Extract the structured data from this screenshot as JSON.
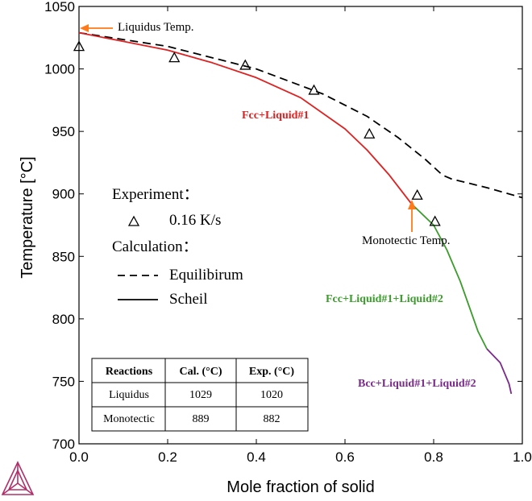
{
  "chart_data": {
    "type": "line",
    "xlabel": "Mole fraction of solid",
    "ylabel": "Temperature [°C]",
    "xlim": [
      0.0,
      1.0
    ],
    "ylim": [
      700,
      1050
    ],
    "x_ticks": [
      "0.0",
      "0.2",
      "0.4",
      "0.6",
      "0.8",
      "1.0"
    ],
    "y_ticks": [
      "700",
      "750",
      "800",
      "850",
      "900",
      "950",
      "1000",
      "1050"
    ],
    "grid": false,
    "series": [
      {
        "name": "Equilibirum",
        "style": "dashed",
        "color": "#000000",
        "x": [
          0.0,
          0.2,
          0.4,
          0.55,
          0.65,
          0.72,
          0.78,
          0.82,
          0.84,
          0.92,
          1.0
        ],
        "y": [
          1029,
          1018,
          1000,
          980,
          962,
          945,
          928,
          915,
          912,
          905,
          897
        ]
      },
      {
        "name": "Scheil",
        "style": "solid",
        "segments": [
          {
            "label": "Fcc+Liquid#1",
            "color": "#e02020",
            "x": [
              0.0,
              0.1,
              0.2,
              0.3,
              0.4,
              0.5,
              0.6,
              0.65,
              0.7,
              0.75
            ],
            "y": [
              1029,
              1022,
              1015,
              1005,
              993,
              977,
              952,
              935,
              915,
              892
            ]
          },
          {
            "label": "Fcc+Liquid#1+Liquid#2",
            "color": "#3a9c2a",
            "x": [
              0.75,
              0.8,
              0.83,
              0.86,
              0.88,
              0.9,
              0.92
            ],
            "y": [
              892,
              875,
              855,
              830,
              810,
              790,
              776
            ]
          },
          {
            "label": "Bcc+Liquid#1+Liquid#2",
            "color": "#7a2a8a",
            "x": [
              0.92,
              0.95,
              0.97,
              0.975
            ],
            "y": [
              776,
              765,
              748,
              740
            ]
          }
        ]
      },
      {
        "name": "0.16 K/s",
        "style": "marker-triangle",
        "color": "#000000",
        "x": [
          0.0,
          0.215,
          0.375,
          0.53,
          0.655,
          0.763,
          0.803
        ],
        "y": [
          1018,
          1009,
          1003,
          983,
          948,
          899,
          878
        ]
      }
    ],
    "annotations": {
      "liquidus": "Liquidus Temp.",
      "monotectic": "Monotectic Temp.",
      "phase_fcc": "Fcc+Liquid#1",
      "phase_fcc_l1_l2": "Fcc+Liquid#1+Liquid#2",
      "phase_bcc_l1_l2": "Bcc+Liquid#1+Liquid#2"
    },
    "legend": {
      "experiment_header": "Experiment：",
      "experiment_item": "0.16 K/s",
      "calculation_header": "Calculation：",
      "dashed_item": "Equilibirum",
      "solid_item": "Scheil"
    },
    "table": {
      "headers": [
        "Reactions",
        "Cal. (°C)",
        "Exp. (°C)"
      ],
      "rows": [
        [
          "Liquidus",
          "1029",
          "1020"
        ],
        [
          "Monotectic",
          "889",
          "882"
        ]
      ]
    }
  },
  "colors": {
    "arrow": "#ff7a1a",
    "fcc": "#e02020",
    "fcc_l1_l2": "#3a9c2a",
    "bcc_l1_l2": "#7a2a8a",
    "logo": "#b0306a"
  }
}
